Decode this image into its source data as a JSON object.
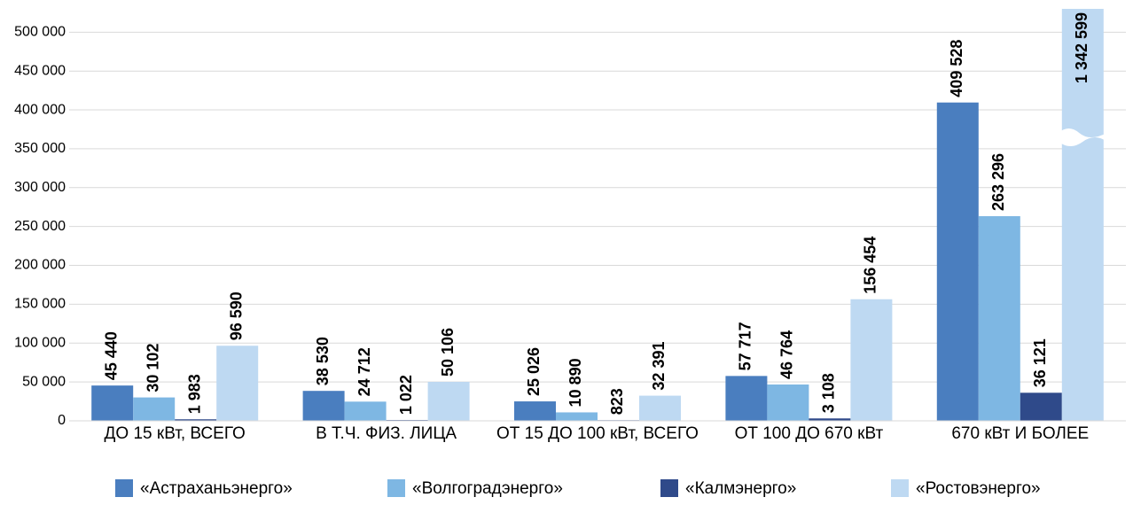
{
  "chart_data": {
    "type": "bar",
    "categories": [
      "ДО 15 кВт, ВСЕГО",
      "В Т.Ч. ФИЗ. ЛИЦА",
      "ОТ 15 ДО 100 кВт, ВСЕГО",
      "ОТ 100 ДО 670 кВт",
      "670 кВт И БОЛЕЕ"
    ],
    "series": [
      {
        "name": "«Астраханьэнерго»",
        "color": "#4a7ebf",
        "values": [
          45440,
          38530,
          25026,
          57717,
          409528
        ],
        "value_labels": [
          "45 440",
          "38 530",
          "25 026",
          "57 717",
          "409 528"
        ]
      },
      {
        "name": "«Волгоградэнерго»",
        "color": "#7eb7e3",
        "values": [
          30102,
          24712,
          10890,
          46764,
          263296
        ],
        "value_labels": [
          "30 102",
          "24 712",
          "10 890",
          "46 764",
          "263 296"
        ]
      },
      {
        "name": "«Калмэнерго»",
        "color": "#2f4a8a",
        "values": [
          1983,
          1022,
          823,
          3108,
          36121
        ],
        "value_labels": [
          "1 983",
          "1 022",
          "823",
          "3 108",
          "36 121"
        ]
      },
      {
        "name": "«Ростовэнерго»",
        "color": "#bed9f2",
        "values": [
          96590,
          50106,
          32391,
          156454,
          1342599
        ],
        "value_labels": [
          "96 590",
          "50 106",
          "32 391",
          "156 454",
          "1 342 599"
        ]
      }
    ],
    "ylim": [
      0,
      530000
    ],
    "yticks": [
      0,
      {
        "value": 50000,
        "label": "50 000"
      },
      {
        "value": 100000,
        "label": "100 000"
      },
      {
        "value": 150000,
        "label": "150 000"
      },
      {
        "value": 200000,
        "label": "200 000"
      },
      {
        "value": 250000,
        "label": "250 000"
      },
      {
        "value": 300000,
        "label": "300 000"
      },
      {
        "value": 350000,
        "label": "350 000"
      },
      {
        "value": 400000,
        "label": "400 000"
      },
      {
        "value": 450000,
        "label": "450 000"
      },
      {
        "value": 500000,
        "label": "500 000"
      }
    ],
    "grid": true
  }
}
